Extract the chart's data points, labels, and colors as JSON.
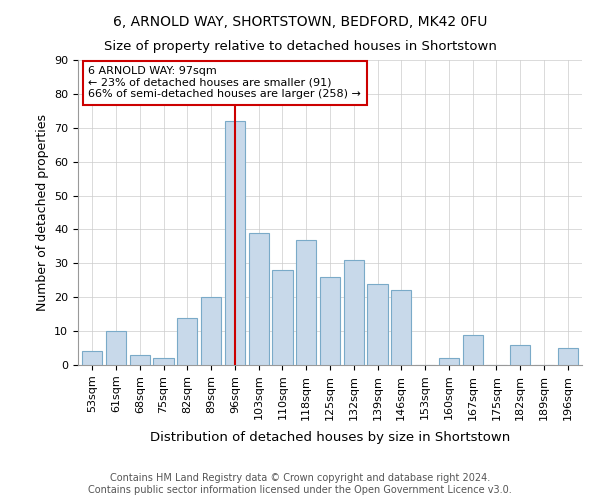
{
  "title1": "6, ARNOLD WAY, SHORTSTOWN, BEDFORD, MK42 0FU",
  "title2": "Size of property relative to detached houses in Shortstown",
  "xlabel": "Distribution of detached houses by size in Shortstown",
  "ylabel": "Number of detached properties",
  "footer1": "Contains HM Land Registry data © Crown copyright and database right 2024.",
  "footer2": "Contains public sector information licensed under the Open Government Licence v3.0.",
  "categories": [
    "53sqm",
    "61sqm",
    "68sqm",
    "75sqm",
    "82sqm",
    "89sqm",
    "96sqm",
    "103sqm",
    "110sqm",
    "118sqm",
    "125sqm",
    "132sqm",
    "139sqm",
    "146sqm",
    "153sqm",
    "160sqm",
    "167sqm",
    "175sqm",
    "182sqm",
    "189sqm",
    "196sqm"
  ],
  "values": [
    4,
    10,
    3,
    2,
    14,
    20,
    72,
    39,
    28,
    37,
    26,
    31,
    24,
    22,
    0,
    2,
    9,
    0,
    6,
    0,
    5
  ],
  "bar_color": "#c8d9ea",
  "bar_edgecolor": "#7aaac8",
  "highlight_index": 6,
  "vline_color": "#cc0000",
  "annotation_line1": "6 ARNOLD WAY: 97sqm",
  "annotation_line2": "← 23% of detached houses are smaller (91)",
  "annotation_line3": "66% of semi-detached houses are larger (258) →",
  "annotation_box_facecolor": "#ffffff",
  "annotation_box_edgecolor": "#cc0000",
  "ylim": [
    0,
    90
  ],
  "yticks": [
    0,
    10,
    20,
    30,
    40,
    50,
    60,
    70,
    80,
    90
  ],
  "title1_fontsize": 10,
  "title2_fontsize": 9.5,
  "ylabel_fontsize": 9,
  "xlabel_fontsize": 9.5,
  "tick_fontsize": 8,
  "footer_fontsize": 7
}
